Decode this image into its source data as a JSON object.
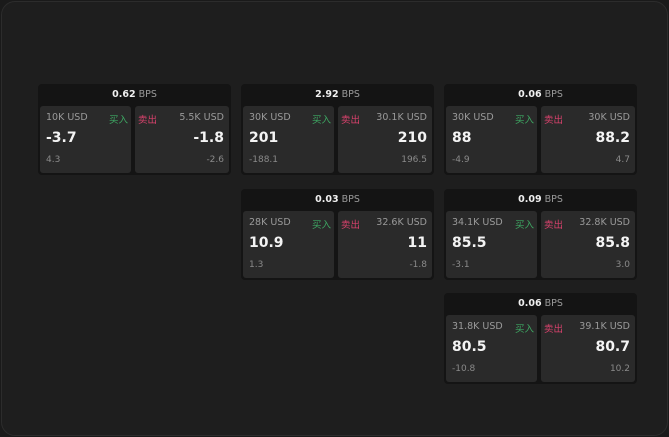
{
  "colors": {
    "buy": "#3ea863",
    "sell": "#d8426c"
  },
  "buy_label": "买入",
  "sell_label": "卖出",
  "unit": "BPS",
  "cards": [
    {
      "slot": "r1c1",
      "spread": "0.62",
      "bid_size": "10K USD",
      "bid": "-3.7",
      "bid_change": "4.3",
      "ask_size": "5.5K USD",
      "ask": "-1.8",
      "ask_change": "-2.6"
    },
    {
      "slot": "r1c2",
      "spread": "2.92",
      "bid_size": "30K USD",
      "bid": "201",
      "bid_change": "-188.1",
      "ask_size": "30.1K USD",
      "ask": "210",
      "ask_change": "196.5"
    },
    {
      "slot": "r1c3",
      "spread": "0.06",
      "bid_size": "30K USD",
      "bid": "88",
      "bid_change": "-4.9",
      "ask_size": "30K USD",
      "ask": "88.2",
      "ask_change": "4.7"
    },
    {
      "slot": "r2c2",
      "spread": "0.03",
      "bid_size": "28K USD",
      "bid": "10.9",
      "bid_change": "1.3",
      "ask_size": "32.6K USD",
      "ask": "11",
      "ask_change": "-1.8"
    },
    {
      "slot": "r2c3",
      "spread": "0.09",
      "bid_size": "34.1K USD",
      "bid": "85.5",
      "bid_change": "-3.1",
      "ask_size": "32.8K USD",
      "ask": "85.8",
      "ask_change": "3.0"
    },
    {
      "slot": "r3c3",
      "spread": "0.06",
      "bid_size": "31.8K USD",
      "bid": "80.5",
      "bid_change": "-10.8",
      "ask_size": "39.1K USD",
      "ask": "80.7",
      "ask_change": "10.2"
    }
  ]
}
